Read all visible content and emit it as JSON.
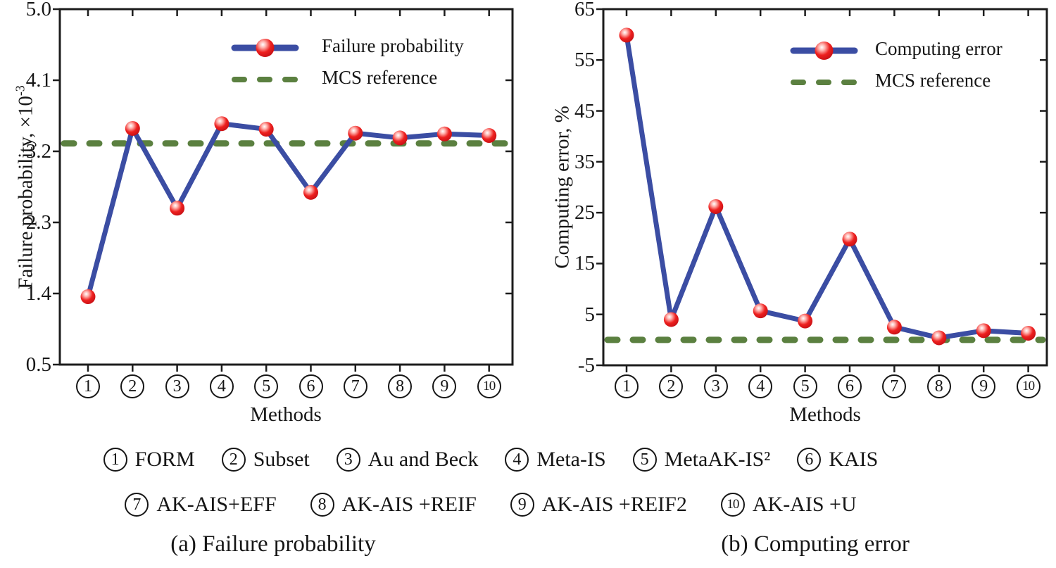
{
  "figure": {
    "captions": {
      "a": "(a) Failure probability",
      "b": "(b) Computing error"
    }
  },
  "chart_data": [
    {
      "panel": "a",
      "type": "line",
      "title": "(a) Failure probability",
      "xlabel": "Methods",
      "ylabel": "Failure probability, ×10⁻³",
      "ylabel_base": "Failure probability, ×10",
      "ylabel_sup": "-3",
      "ylim": [
        0.5,
        5.0
      ],
      "ytick_labels": [
        "5.0",
        "4.1",
        "3.2",
        "2.3",
        "1.4",
        "0.5"
      ],
      "x_categories": [
        "1",
        "2",
        "3",
        "4",
        "5",
        "6",
        "7",
        "8",
        "9",
        "10"
      ],
      "grid": false,
      "legend_position": "top-inside",
      "series": [
        {
          "name": "Failure probability",
          "style": "solid-line-red-markers",
          "values": [
            1.36,
            3.49,
            2.48,
            3.55,
            3.48,
            2.68,
            3.43,
            3.37,
            3.42,
            3.4
          ]
        },
        {
          "name": "MCS reference",
          "style": "dashed-horizontal-reference",
          "value": 3.3
        }
      ]
    },
    {
      "panel": "b",
      "type": "line",
      "title": "(b) Computing error",
      "xlabel": "Methods",
      "ylabel": "Computing error, %",
      "ylim": [
        -5,
        65
      ],
      "ytick_labels": [
        "65",
        "55",
        "45",
        "35",
        "25",
        "15",
        "5",
        "-5"
      ],
      "x_categories": [
        "1",
        "2",
        "3",
        "4",
        "5",
        "6",
        "7",
        "8",
        "9",
        "10"
      ],
      "grid": false,
      "legend_position": "top-inside",
      "series": [
        {
          "name": "Computing error",
          "style": "solid-line-red-markers",
          "values": [
            59.9,
            4.0,
            26.2,
            5.7,
            3.7,
            19.8,
            2.5,
            0.4,
            1.8,
            1.3
          ]
        },
        {
          "name": "MCS reference",
          "style": "dashed-horizontal-reference",
          "value": 0
        }
      ]
    }
  ],
  "methods_key": {
    "rows": [
      [
        {
          "num": "1",
          "name": "FORM"
        },
        {
          "num": "2",
          "name": "Subset"
        },
        {
          "num": "3",
          "name": "Au and Beck"
        },
        {
          "num": "4",
          "name": "Meta-IS"
        },
        {
          "num": "5",
          "name": "MetaAK-IS²"
        },
        {
          "num": "6",
          "name": "KAIS"
        }
      ],
      [
        {
          "num": "7",
          "name": "AK-AIS+EFF"
        },
        {
          "num": "8",
          "name": "AK-AIS +REIF"
        },
        {
          "num": "9",
          "name": "AK-AIS +REIF2"
        },
        {
          "num": "10",
          "name": "AK-AIS +U"
        }
      ]
    ]
  },
  "colors": {
    "series_blue": "#3b4da3",
    "marker_red": "#e81c22",
    "reference_green": "#5b8040",
    "axis": "#1c1c1c"
  }
}
